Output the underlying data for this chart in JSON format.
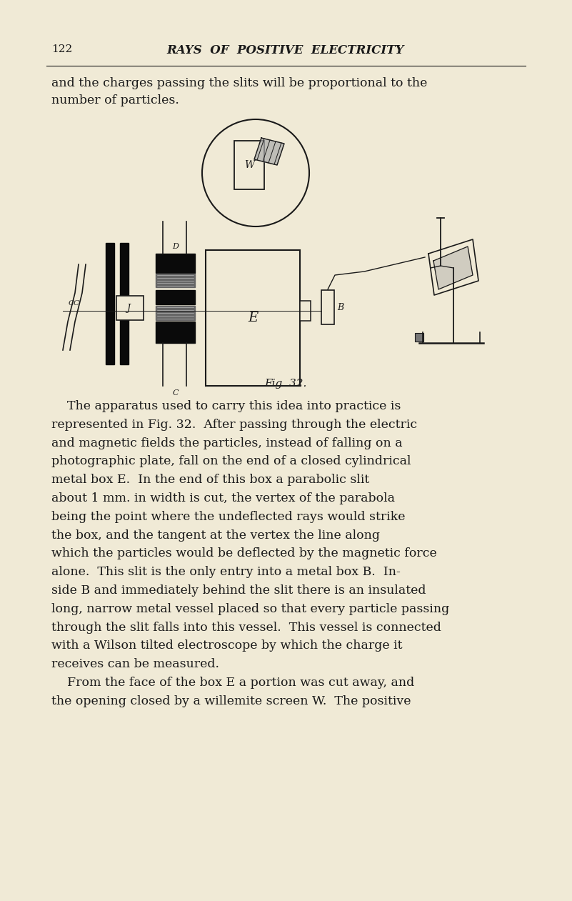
{
  "bg_color": "#f0ead6",
  "page_number": "122",
  "header_title": "RAYS  OF  POSITIVE  ELECTRICITY",
  "line1": "and the charges passing the slits will be proportional to the",
  "line2": "number of particles.",
  "fig_caption": "Fig. 32.",
  "body_text": [
    "    The apparatus used to carry this idea into practice is",
    "represented in Fig. 32.  After passing through the electric",
    "and magnetic fields the particles, instead of falling on a",
    "photographic plate, fall on the end of a closed cylindrical",
    "metal box E.  In the end of this box a parabolic slit",
    "about 1 mm. in width is cut, the vertex of the parabola",
    "being the point where the undeflected rays would strike",
    "the box, and the tangent at the vertex the line along",
    "which the particles would be deflected by the magnetic force",
    "alone.  This slit is the only entry into a metal box B.  In-",
    "side B and immediately behind the slit there is an insulated",
    "long, narrow metal vessel placed so that every particle passing",
    "through the slit falls into this vessel.  This vessel is connected",
    "with a Wilson tilted electroscope by which the charge it",
    "receives can be measured.",
    "    From the face of the box E a portion was cut away, and",
    "the opening closed by a willemite screen W.  The positive"
  ],
  "text_color": "#1a1a1a",
  "ink_color": "#1a1a1a"
}
